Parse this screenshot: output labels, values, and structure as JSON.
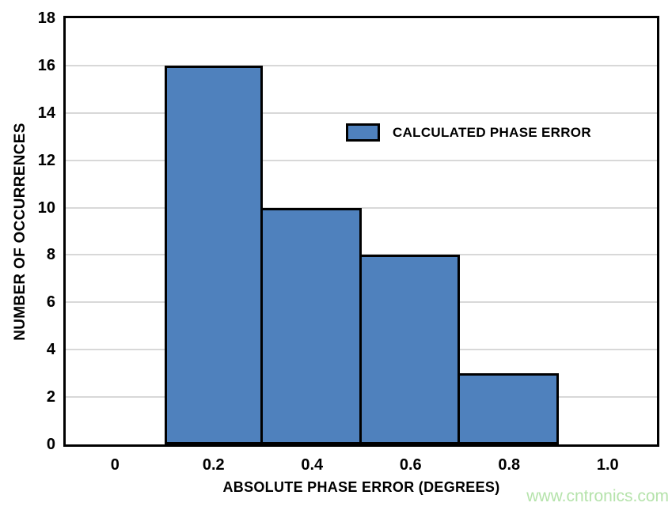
{
  "watermark": {
    "text": "www.cntronics.com",
    "color": "#b5e3ab"
  },
  "chart_data": {
    "type": "bar",
    "title": "",
    "categories": [
      "0",
      "0.2",
      "0.4",
      "0.6",
      "0.8",
      "1.0"
    ],
    "values": [
      0,
      16,
      10,
      8,
      3,
      0
    ],
    "xlabel": "ABSOLUTE PHASE ERROR (DEGREES)",
    "ylabel": "NUMBER OF OCCURRENCES",
    "ylim": [
      0,
      18
    ],
    "ytick_step": 2,
    "yticks": [
      0,
      2,
      4,
      6,
      8,
      10,
      12,
      14,
      16,
      18
    ],
    "legend": {
      "label": "CALCULATED PHASE ERROR",
      "position": "inside-upper-middle"
    },
    "grid": "horizontal",
    "bar_color": "#4F81BD",
    "bar_border_color": "#000000",
    "frame_color": "#000000",
    "gridline_color": "#d8d8d8",
    "background_color": "#ffffff"
  }
}
